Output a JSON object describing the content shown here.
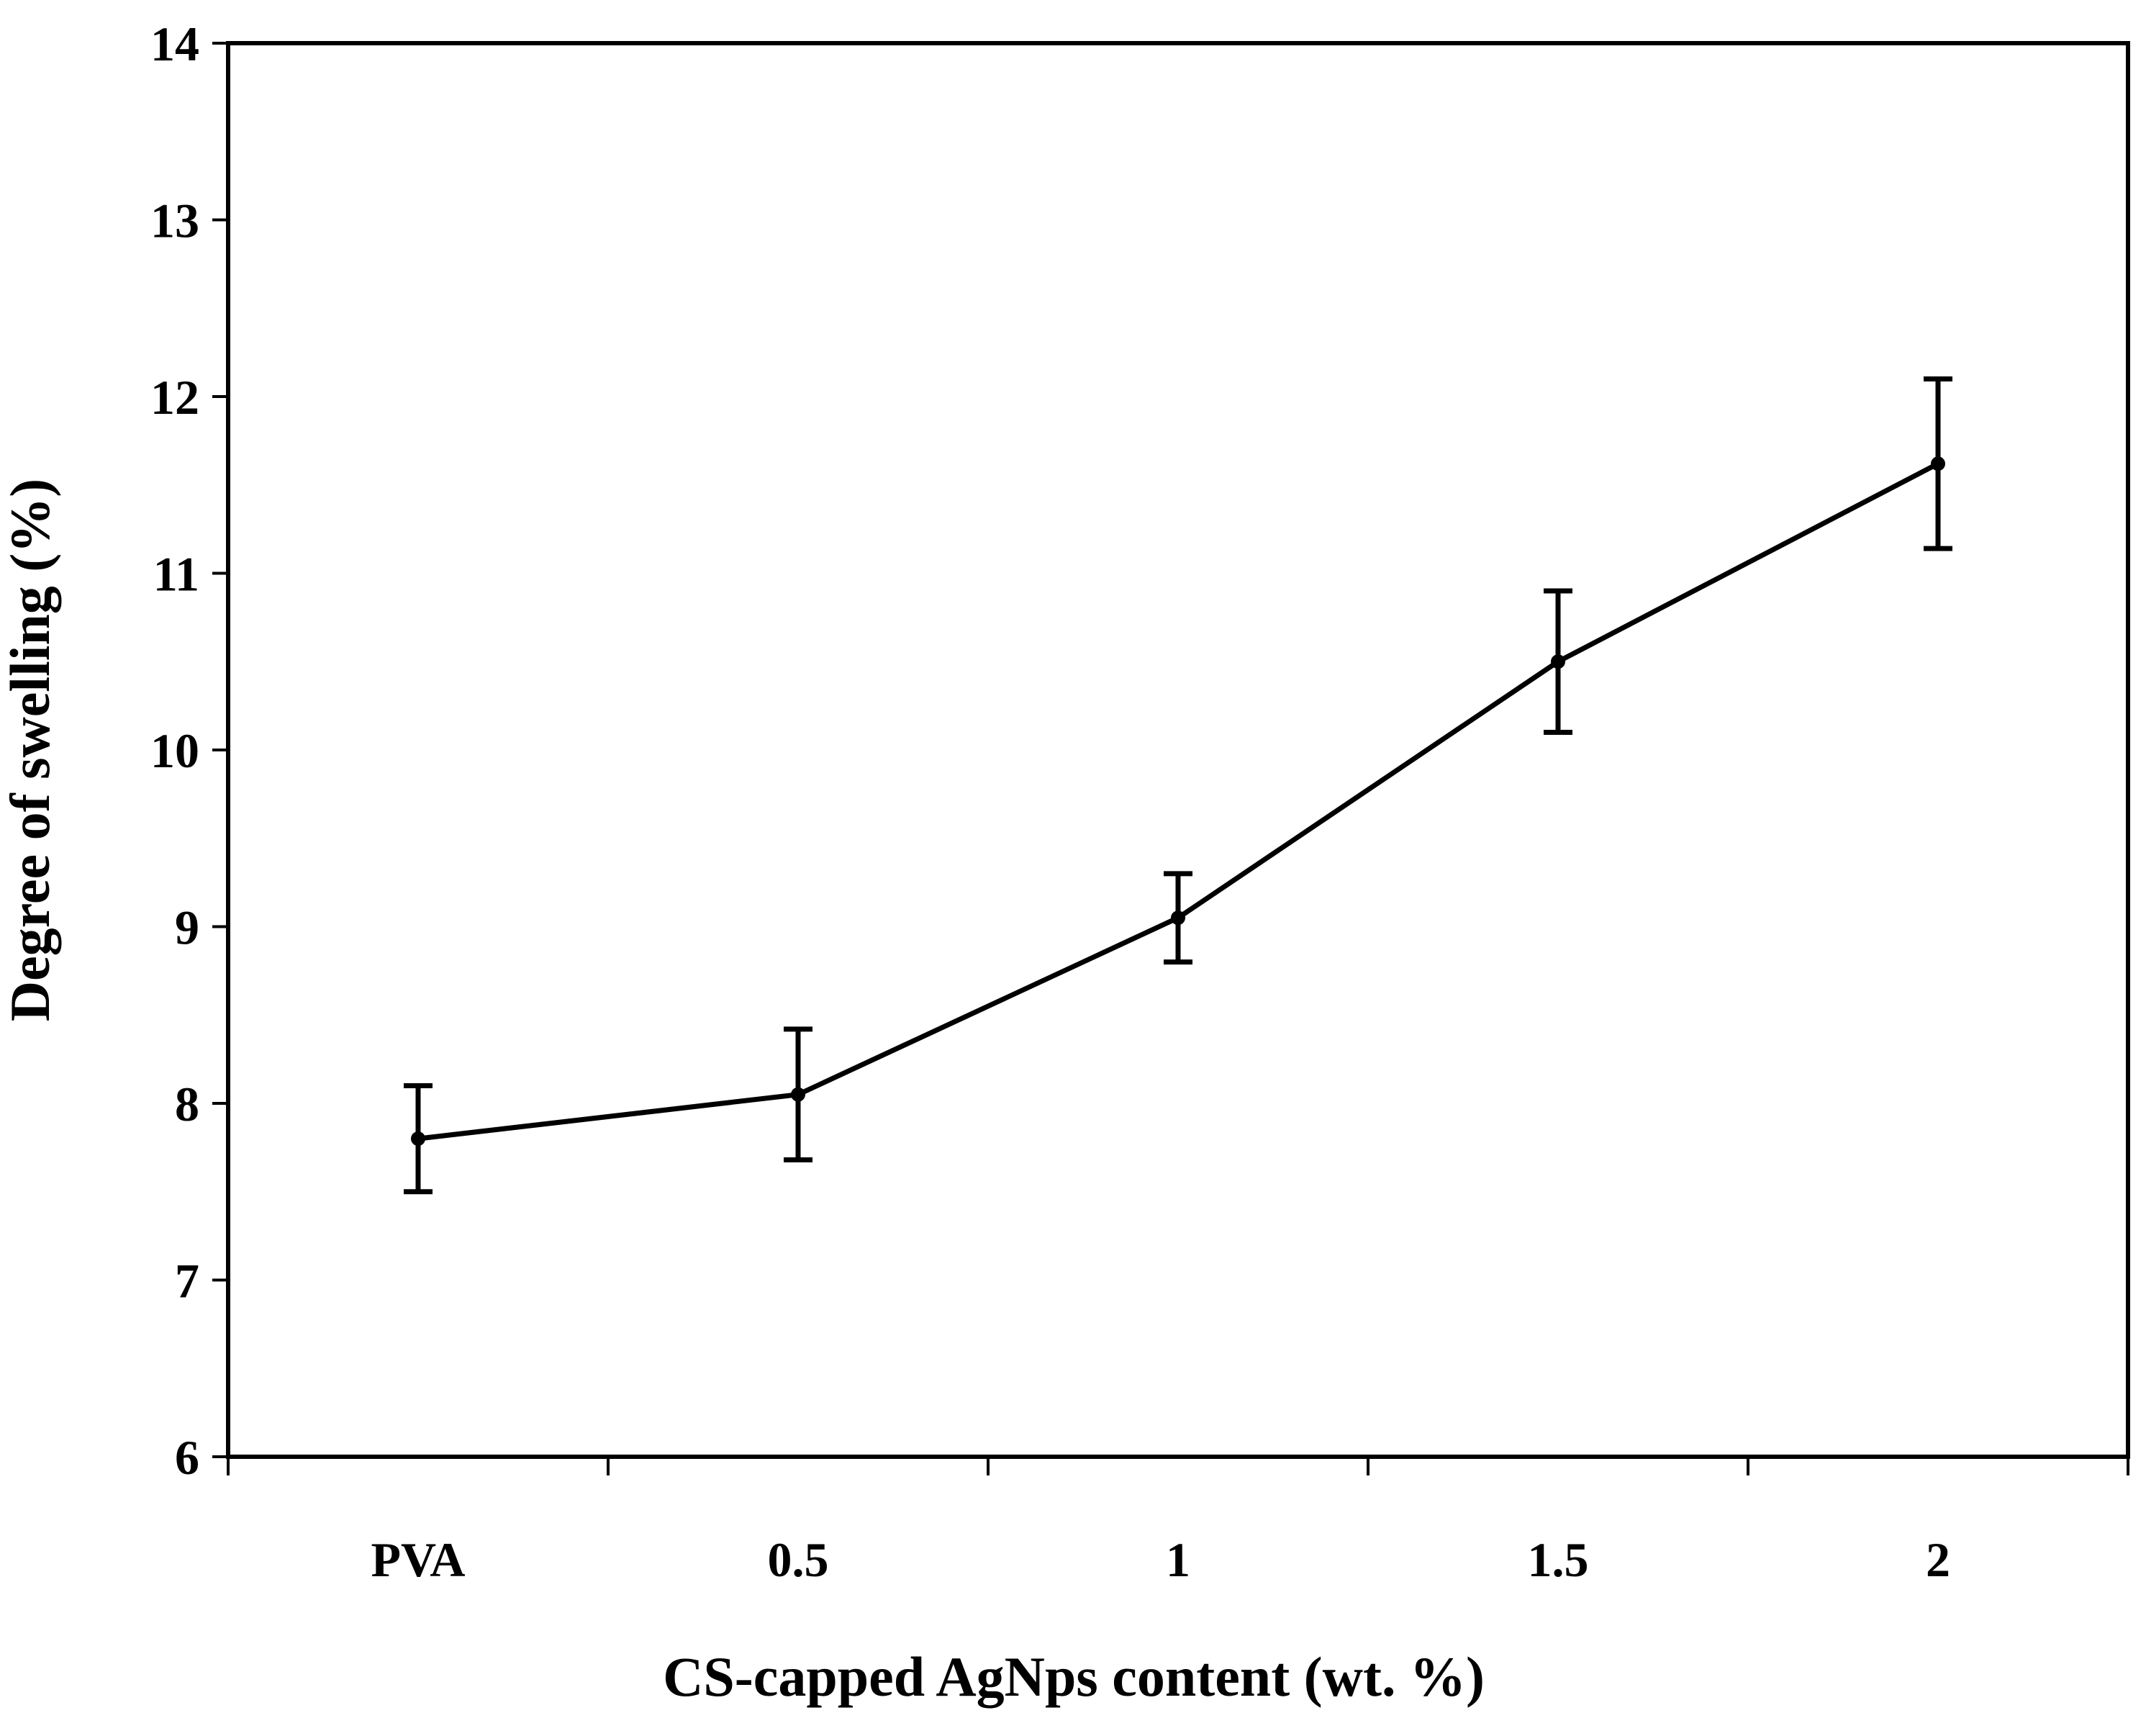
{
  "chart_data": {
    "type": "line",
    "title": "",
    "xlabel": "CS-capped AgNps  content (wt. %)",
    "ylabel": "Degree of swelling (%)",
    "categories": [
      "PVA",
      "0.5",
      "1",
      "1.5",
      "2"
    ],
    "series": [
      {
        "name": "Degree of swelling",
        "values": [
          7.8,
          8.05,
          9.05,
          10.5,
          11.62
        ],
        "error": [
          0.3,
          0.37,
          0.25,
          0.4,
          0.48
        ]
      }
    ],
    "ylim": [
      6,
      14
    ],
    "yticks": [
      6,
      7,
      8,
      9,
      10,
      11,
      12,
      13,
      14
    ],
    "grid": false,
    "legend": "none",
    "colors": {
      "line": "#000000",
      "axis": "#000000",
      "background": "#ffffff"
    }
  }
}
